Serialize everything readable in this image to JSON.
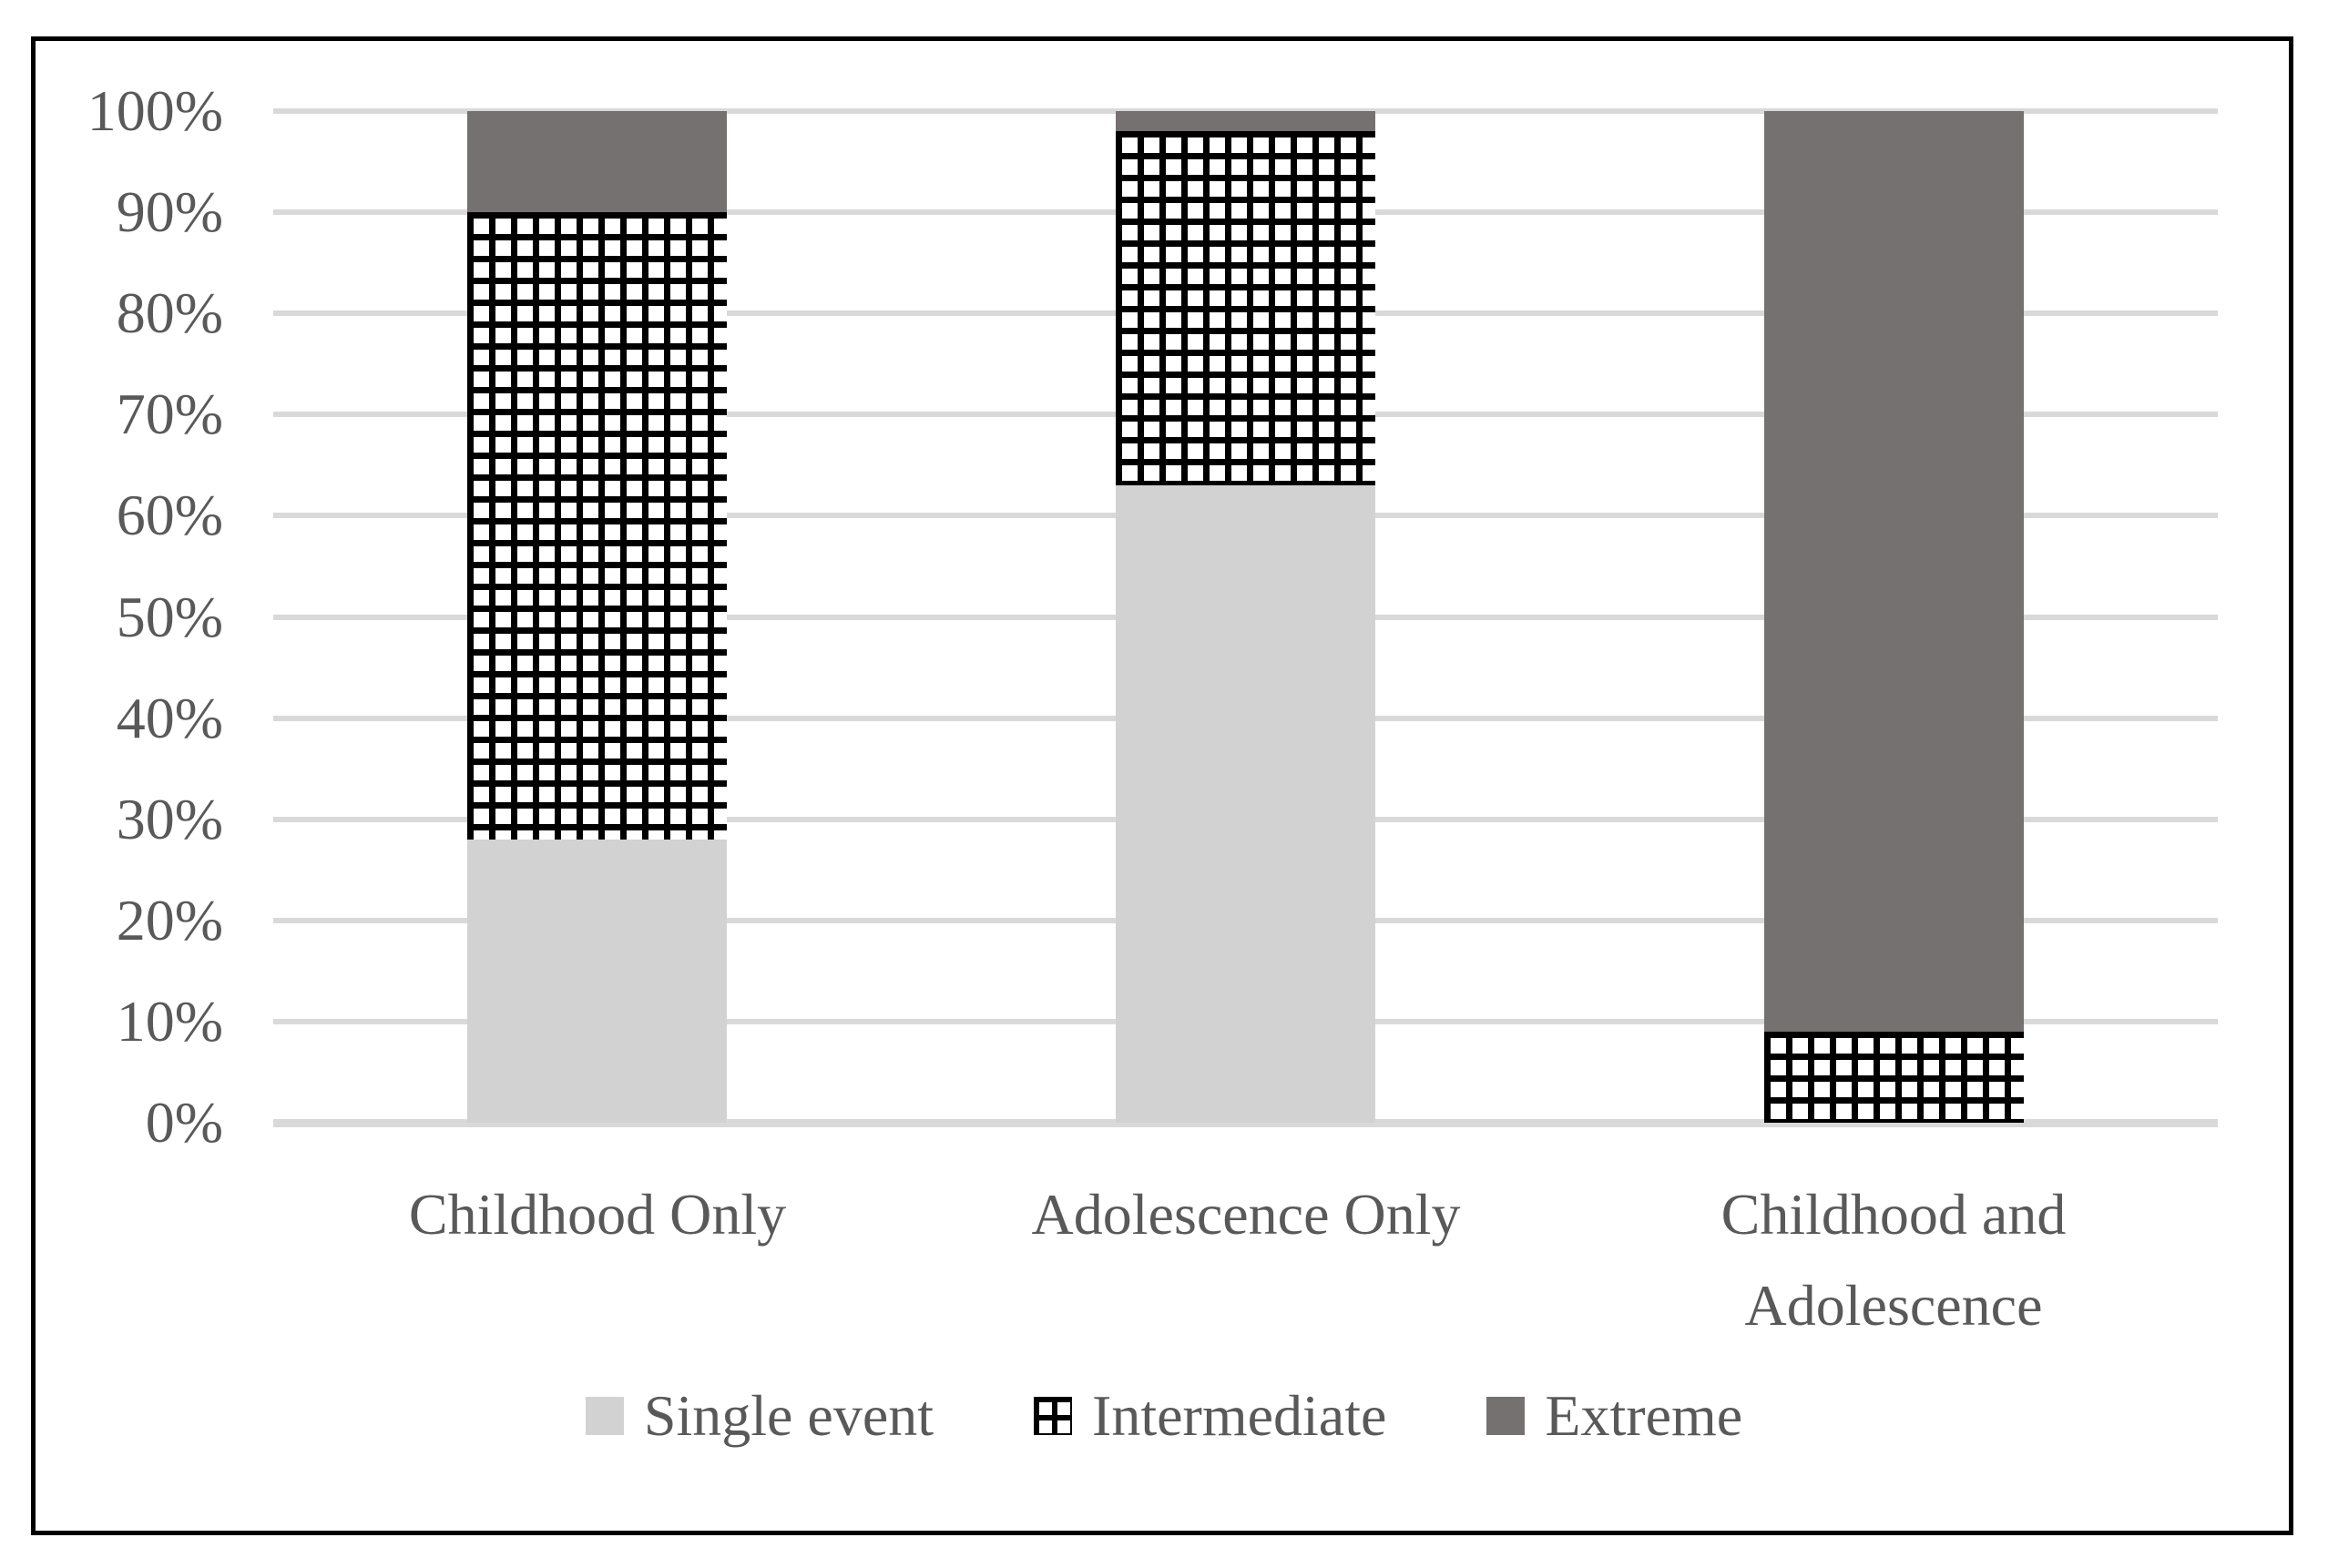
{
  "chart_data": {
    "type": "bar",
    "stacked": true,
    "units": "percent",
    "title": "",
    "xlabel": "",
    "ylabel": "",
    "categories": [
      "Childhood Only",
      "Adolescence Only",
      "Childhood and Adolescence"
    ],
    "series": [
      {
        "name": "Single event",
        "fill": "solid",
        "color": "#d2d2d2",
        "values": [
          28,
          63,
          0
        ]
      },
      {
        "name": "Intermediate",
        "fill": "grid-pattern",
        "color": "#000000",
        "pattern_background": "#ffffff",
        "values": [
          62,
          35,
          9
        ]
      },
      {
        "name": "Extreme",
        "fill": "solid",
        "color": "#767171",
        "values": [
          10,
          2,
          91
        ]
      }
    ],
    "y_ticks": [
      "100%",
      "90%",
      "80%",
      "70%",
      "60%",
      "50%",
      "40%",
      "30%",
      "20%",
      "10%",
      "0%"
    ],
    "ylim": [
      0,
      100
    ],
    "grid": true,
    "legend_position": "bottom",
    "colors": {
      "gridline": "#d9d9d9",
      "axis_text": "#595959",
      "figure_border": "#000000",
      "plot_background": "#ffffff"
    }
  }
}
